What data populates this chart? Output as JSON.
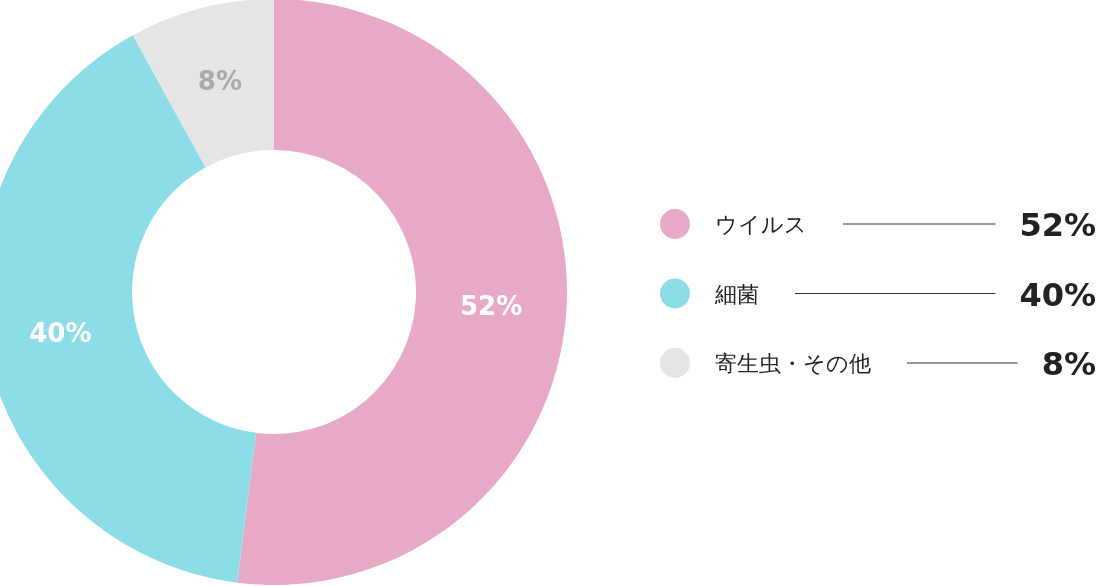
{
  "chart_data": {
    "type": "donut",
    "categories": [
      "ウイルス",
      "細菌",
      "寄生虫・その他"
    ],
    "values": [
      52,
      40,
      8
    ],
    "colors": [
      "#e8a9c7",
      "#8cdde8",
      "#e5e5e5"
    ],
    "value_labels": [
      "52%",
      "40%",
      "8%"
    ],
    "legend": "right"
  }
}
